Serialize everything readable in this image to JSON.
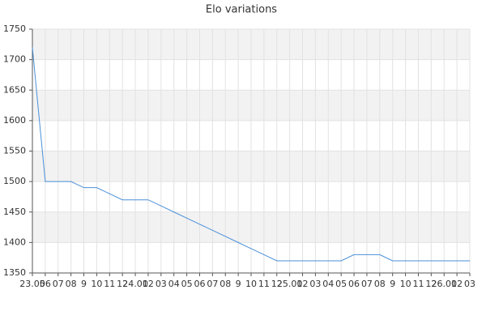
{
  "chart_data": {
    "type": "line",
    "title": "Elo variations",
    "categories": [
      "23.05",
      "06",
      "07",
      "08",
      "9",
      "10",
      "11",
      "12",
      "24.01",
      "02",
      "03",
      "04",
      "05",
      "06",
      "07",
      "08",
      "9",
      "10",
      "11",
      "12",
      "25.01",
      "02",
      "03",
      "04",
      "05",
      "06",
      "07",
      "08",
      "9",
      "10",
      "11",
      "12",
      "26.01",
      "02",
      "03"
    ],
    "values": [
      1720,
      1500,
      1500,
      1500,
      1490,
      1490,
      1480,
      1470,
      1470,
      1470,
      1460,
      1450,
      1440,
      1430,
      1420,
      1410,
      1400,
      1390,
      1380,
      1370,
      1370,
      1370,
      1370,
      1370,
      1370,
      1380,
      1380,
      1380,
      1370,
      1370,
      1370,
      1370,
      1370,
      1370,
      1370
    ],
    "color": "#4a90d9",
    "ylim": [
      1350,
      1750
    ],
    "yticks": [
      1350,
      1400,
      1450,
      1500,
      1550,
      1600,
      1650,
      1700,
      1750
    ],
    "grid": true
  }
}
